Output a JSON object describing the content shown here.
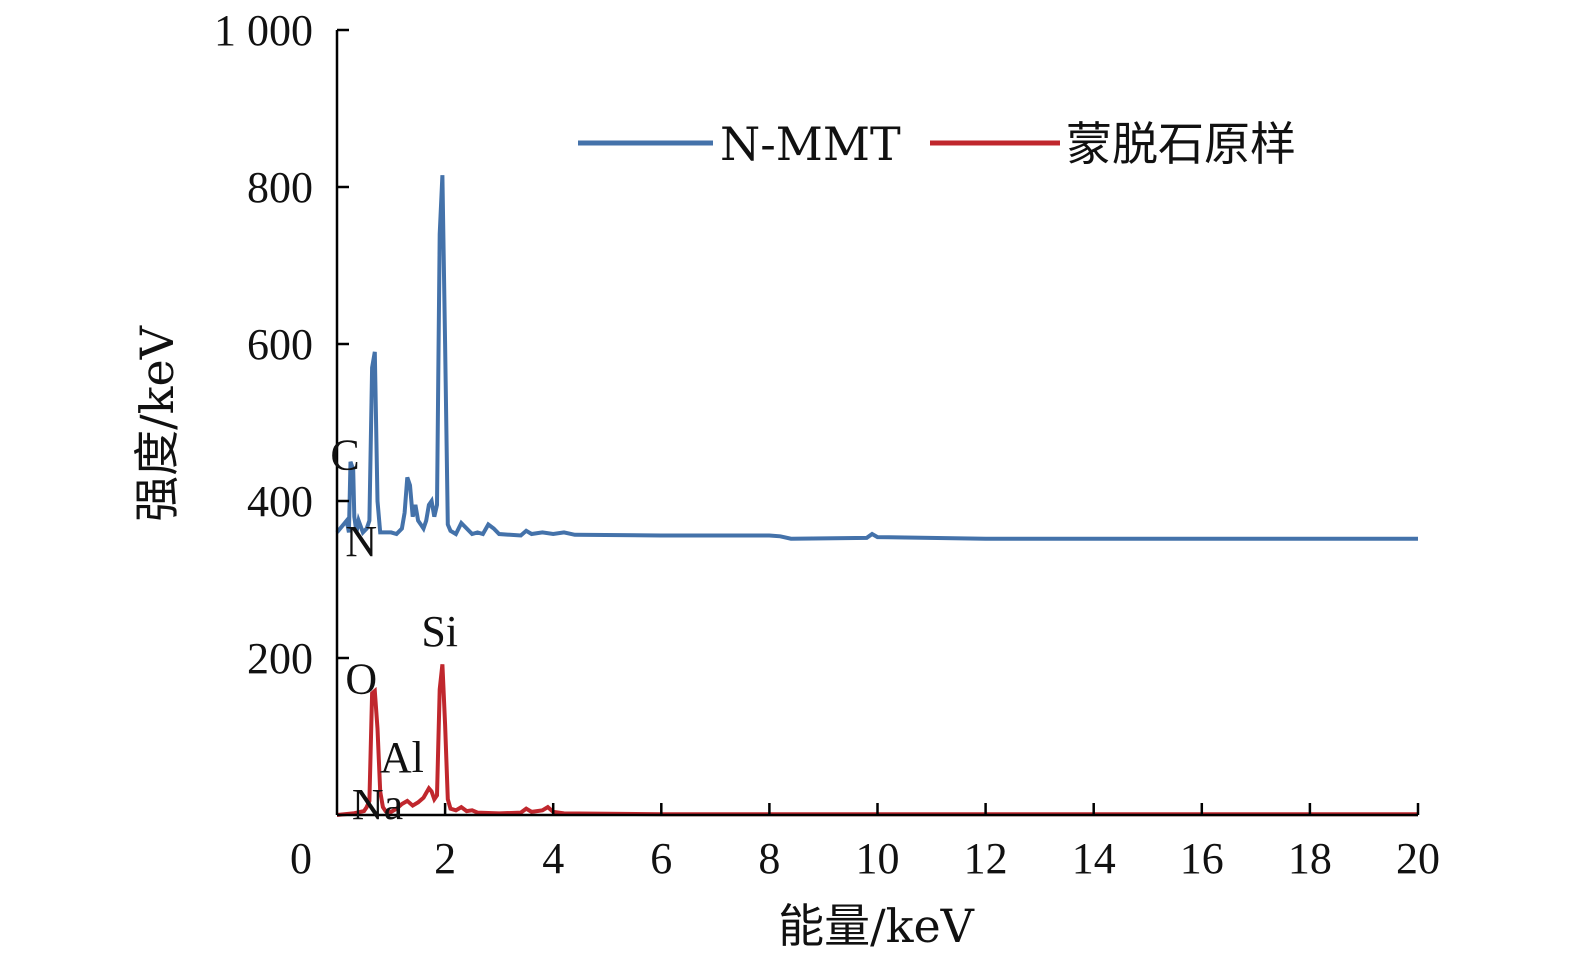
{
  "chart_data": {
    "type": "line",
    "xlabel": "能量/keV",
    "ylabel": "强度/keV",
    "xlim": [
      0,
      20
    ],
    "ylim": [
      0,
      1000
    ],
    "x_ticks": [
      0,
      2,
      4,
      6,
      8,
      10,
      12,
      14,
      16,
      18,
      20
    ],
    "x_tick_labels": [
      "0",
      "2",
      "4",
      "6",
      "8",
      "10",
      "12",
      "14",
      "16",
      "18",
      "20"
    ],
    "y_ticks": [
      200,
      400,
      600,
      800,
      1000
    ],
    "y_tick_labels": [
      "200",
      "400",
      "600",
      "800",
      "1 000"
    ],
    "grid": false,
    "legend_position": "top-right",
    "series": [
      {
        "name": "N-MMT",
        "color": "#4472aa",
        "points": [
          [
            0.0,
            360
          ],
          [
            0.18,
            375
          ],
          [
            0.22,
            360
          ],
          [
            0.25,
            450
          ],
          [
            0.3,
            440
          ],
          [
            0.32,
            380
          ],
          [
            0.36,
            360
          ],
          [
            0.4,
            375
          ],
          [
            0.48,
            360
          ],
          [
            0.55,
            365
          ],
          [
            0.6,
            375
          ],
          [
            0.65,
            570
          ],
          [
            0.7,
            590
          ],
          [
            0.75,
            400
          ],
          [
            0.8,
            360
          ],
          [
            1.0,
            360
          ],
          [
            1.1,
            358
          ],
          [
            1.2,
            365
          ],
          [
            1.25,
            385
          ],
          [
            1.3,
            430
          ],
          [
            1.35,
            420
          ],
          [
            1.4,
            380
          ],
          [
            1.45,
            395
          ],
          [
            1.5,
            375
          ],
          [
            1.55,
            370
          ],
          [
            1.6,
            365
          ],
          [
            1.65,
            375
          ],
          [
            1.7,
            395
          ],
          [
            1.75,
            400
          ],
          [
            1.8,
            380
          ],
          [
            1.85,
            395
          ],
          [
            1.9,
            740
          ],
          [
            1.95,
            815
          ],
          [
            2.0,
            600
          ],
          [
            2.05,
            370
          ],
          [
            2.1,
            362
          ],
          [
            2.2,
            358
          ],
          [
            2.3,
            372
          ],
          [
            2.4,
            365
          ],
          [
            2.5,
            358
          ],
          [
            2.6,
            360
          ],
          [
            2.7,
            358
          ],
          [
            2.8,
            370
          ],
          [
            2.9,
            365
          ],
          [
            3.0,
            358
          ],
          [
            3.2,
            357
          ],
          [
            3.4,
            356
          ],
          [
            3.5,
            362
          ],
          [
            3.6,
            358
          ],
          [
            3.8,
            360
          ],
          [
            4.0,
            358
          ],
          [
            4.2,
            360
          ],
          [
            4.4,
            357
          ],
          [
            6.0,
            356
          ],
          [
            8.0,
            356
          ],
          [
            8.2,
            355
          ],
          [
            8.4,
            352
          ],
          [
            9.8,
            353
          ],
          [
            9.9,
            358
          ],
          [
            10.0,
            354
          ],
          [
            12.0,
            352
          ],
          [
            16.0,
            352
          ],
          [
            20.0,
            352
          ]
        ]
      },
      {
        "name": "蒙脱石原样",
        "color": "#c0272d",
        "points": [
          [
            0.0,
            0
          ],
          [
            0.3,
            2
          ],
          [
            0.5,
            5
          ],
          [
            0.55,
            10
          ],
          [
            0.6,
            18
          ],
          [
            0.65,
            155
          ],
          [
            0.7,
            158
          ],
          [
            0.75,
            110
          ],
          [
            0.8,
            30
          ],
          [
            0.85,
            10
          ],
          [
            0.9,
            5
          ],
          [
            1.0,
            4
          ],
          [
            1.1,
            8
          ],
          [
            1.2,
            14
          ],
          [
            1.3,
            18
          ],
          [
            1.4,
            12
          ],
          [
            1.5,
            16
          ],
          [
            1.6,
            22
          ],
          [
            1.65,
            28
          ],
          [
            1.7,
            34
          ],
          [
            1.75,
            30
          ],
          [
            1.8,
            20
          ],
          [
            1.85,
            25
          ],
          [
            1.9,
            160
          ],
          [
            1.95,
            192
          ],
          [
            2.0,
            115
          ],
          [
            2.05,
            20
          ],
          [
            2.1,
            8
          ],
          [
            2.2,
            6
          ],
          [
            2.3,
            10
          ],
          [
            2.4,
            5
          ],
          [
            2.5,
            6
          ],
          [
            2.6,
            3
          ],
          [
            3.0,
            2
          ],
          [
            3.4,
            3
          ],
          [
            3.5,
            8
          ],
          [
            3.6,
            4
          ],
          [
            3.8,
            6
          ],
          [
            3.9,
            10
          ],
          [
            4.0,
            4
          ],
          [
            4.2,
            2
          ],
          [
            6.0,
            1
          ],
          [
            10.0,
            1
          ],
          [
            20.0,
            1
          ]
        ]
      }
    ],
    "annotations": [
      {
        "text": "C",
        "x": 0.15,
        "y": 440
      },
      {
        "text": "N",
        "x": 0.45,
        "y": 330
      },
      {
        "text": "Si",
        "x": 1.9,
        "y": 215
      },
      {
        "text": "O",
        "x": 0.45,
        "y": 155
      },
      {
        "text": "Al",
        "x": 1.2,
        "y": 55
      },
      {
        "text": "Na",
        "x": 0.75,
        "y": -5
      }
    ]
  }
}
